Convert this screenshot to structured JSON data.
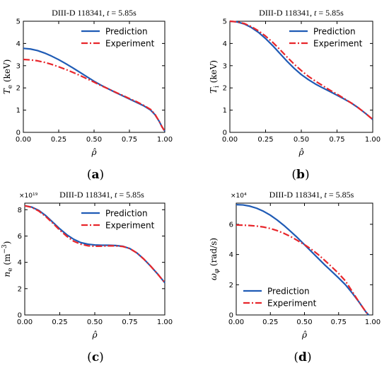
{
  "colors": {
    "prediction": "#1f5bb5",
    "experiment": "#e8262b"
  },
  "chart_data": [
    {
      "type": "line",
      "panel_label": "a",
      "title": "DIII-D 118341, t = 5.85s",
      "xlabel": "ρ̂",
      "ylabel": "Te (keV)",
      "xlim": [
        0,
        1
      ],
      "ylim": [
        0,
        5
      ],
      "xticks": [
        "0.00",
        "0.25",
        "0.50",
        "0.75",
        "1.00"
      ],
      "yticks": [
        "0",
        "1",
        "2",
        "3",
        "4",
        "5"
      ],
      "multiplier": "",
      "legend": "top-right",
      "series": [
        {
          "name": "Prediction",
          "style": "solid",
          "color": "#1f5bb5",
          "x": [
            0,
            0.05,
            0.1,
            0.15,
            0.2,
            0.25,
            0.3,
            0.35,
            0.4,
            0.45,
            0.5,
            0.55,
            0.6,
            0.65,
            0.7,
            0.75,
            0.8,
            0.85,
            0.9,
            0.93,
            0.96,
            0.98,
            1.0
          ],
          "y": [
            3.78,
            3.75,
            3.68,
            3.57,
            3.43,
            3.27,
            3.09,
            2.9,
            2.7,
            2.5,
            2.3,
            2.12,
            1.96,
            1.8,
            1.65,
            1.5,
            1.35,
            1.2,
            1.0,
            0.8,
            0.5,
            0.25,
            0.05
          ]
        },
        {
          "name": "Experiment",
          "style": "dashdot",
          "color": "#e8262b",
          "x": [
            0,
            0.05,
            0.1,
            0.15,
            0.2,
            0.25,
            0.3,
            0.35,
            0.4,
            0.45,
            0.5,
            0.55,
            0.6,
            0.65,
            0.7,
            0.75,
            0.8,
            0.85,
            0.9,
            0.93,
            0.96,
            0.98,
            1.0
          ],
          "y": [
            3.28,
            3.26,
            3.22,
            3.15,
            3.06,
            2.95,
            2.83,
            2.7,
            2.56,
            2.41,
            2.26,
            2.1,
            1.96,
            1.81,
            1.67,
            1.52,
            1.38,
            1.22,
            1.03,
            0.82,
            0.5,
            0.25,
            0.05
          ]
        }
      ]
    },
    {
      "type": "line",
      "panel_label": "b",
      "title": "DIII-D 118341, t = 5.85s",
      "xlabel": "ρ̂",
      "ylabel": "Ti (keV)",
      "xlim": [
        0,
        1
      ],
      "ylim": [
        0,
        5
      ],
      "xticks": [
        "0.00",
        "0.25",
        "0.50",
        "0.75",
        "1.00"
      ],
      "yticks": [
        "0",
        "1",
        "2",
        "3",
        "4",
        "5"
      ],
      "multiplier": "",
      "legend": "top-right",
      "series": [
        {
          "name": "Prediction",
          "style": "solid",
          "color": "#1f5bb5",
          "x": [
            0,
            0.05,
            0.1,
            0.15,
            0.2,
            0.25,
            0.3,
            0.35,
            0.4,
            0.45,
            0.5,
            0.55,
            0.6,
            0.65,
            0.7,
            0.75,
            0.8,
            0.85,
            0.9,
            0.95,
            1.0
          ],
          "y": [
            5.0,
            4.97,
            4.88,
            4.72,
            4.5,
            4.22,
            3.9,
            3.55,
            3.2,
            2.88,
            2.6,
            2.37,
            2.17,
            2.0,
            1.84,
            1.67,
            1.5,
            1.32,
            1.1,
            0.85,
            0.58
          ]
        },
        {
          "name": "Experiment",
          "style": "dashdot",
          "color": "#e8262b",
          "x": [
            0,
            0.05,
            0.1,
            0.15,
            0.2,
            0.25,
            0.3,
            0.35,
            0.4,
            0.45,
            0.5,
            0.55,
            0.6,
            0.65,
            0.7,
            0.75,
            0.8,
            0.85,
            0.9,
            0.95,
            1.0
          ],
          "y": [
            5.0,
            4.97,
            4.9,
            4.76,
            4.57,
            4.33,
            4.05,
            3.73,
            3.39,
            3.07,
            2.78,
            2.52,
            2.3,
            2.1,
            1.9,
            1.72,
            1.52,
            1.32,
            1.1,
            0.85,
            0.58
          ]
        }
      ]
    },
    {
      "type": "line",
      "panel_label": "c",
      "title": "DIII-D 118341, t = 5.85s",
      "xlabel": "ρ̂",
      "ylabel": "ne (m−3)",
      "xlim": [
        0,
        1
      ],
      "ylim": [
        0,
        8.5
      ],
      "xticks": [
        "0.00",
        "0.25",
        "0.50",
        "0.75",
        "1.00"
      ],
      "yticks": [
        "0",
        "2",
        "4",
        "6",
        "8"
      ],
      "multiplier": "×10¹⁹",
      "legend": "top-right",
      "series": [
        {
          "name": "Prediction",
          "style": "solid",
          "color": "#1f5bb5",
          "x": [
            0,
            0.05,
            0.1,
            0.15,
            0.2,
            0.25,
            0.3,
            0.35,
            0.4,
            0.45,
            0.5,
            0.55,
            0.6,
            0.65,
            0.7,
            0.75,
            0.8,
            0.85,
            0.9,
            0.95,
            1.0
          ],
          "y": [
            8.3,
            8.2,
            7.95,
            7.55,
            7.05,
            6.55,
            6.1,
            5.75,
            5.5,
            5.38,
            5.32,
            5.3,
            5.3,
            5.28,
            5.22,
            5.05,
            4.72,
            4.25,
            3.7,
            3.1,
            2.45
          ]
        },
        {
          "name": "Experiment",
          "style": "dashdot",
          "color": "#e8262b",
          "x": [
            0,
            0.05,
            0.1,
            0.15,
            0.2,
            0.25,
            0.3,
            0.35,
            0.4,
            0.45,
            0.5,
            0.55,
            0.6,
            0.65,
            0.7,
            0.75,
            0.8,
            0.85,
            0.9,
            0.95,
            1.0
          ],
          "y": [
            8.3,
            8.18,
            7.9,
            7.48,
            6.98,
            6.45,
            5.98,
            5.6,
            5.38,
            5.26,
            5.22,
            5.23,
            5.25,
            5.25,
            5.2,
            5.05,
            4.72,
            4.25,
            3.7,
            3.1,
            2.45
          ]
        }
      ]
    },
    {
      "type": "line",
      "panel_label": "d",
      "title": "DIII-D 118341, t = 5.85s",
      "xlabel": "ρ̂",
      "ylabel": "ωφ (rad/s)",
      "xlim": [
        0,
        1
      ],
      "ylim": [
        0,
        7.4
      ],
      "xticks": [
        "0.00",
        "0.25",
        "0.50",
        "0.75",
        "1.00"
      ],
      "yticks": [
        "0",
        "2",
        "4",
        "6"
      ],
      "multiplier": "×10⁴",
      "legend": "lower-left",
      "series": [
        {
          "name": "Prediction",
          "style": "solid",
          "color": "#1f5bb5",
          "x": [
            0,
            0.05,
            0.1,
            0.15,
            0.2,
            0.25,
            0.3,
            0.35,
            0.4,
            0.45,
            0.5,
            0.55,
            0.6,
            0.65,
            0.7,
            0.75,
            0.8,
            0.85,
            0.9,
            0.95,
            0.97
          ],
          "y": [
            7.3,
            7.28,
            7.2,
            7.06,
            6.86,
            6.6,
            6.28,
            5.92,
            5.52,
            5.1,
            4.65,
            4.2,
            3.75,
            3.3,
            2.88,
            2.45,
            2.0,
            1.45,
            0.85,
            0.2,
            0.0
          ]
        },
        {
          "name": "Experiment",
          "style": "dashdot",
          "color": "#e8262b",
          "x": [
            0,
            0.05,
            0.1,
            0.15,
            0.2,
            0.25,
            0.3,
            0.35,
            0.4,
            0.45,
            0.5,
            0.55,
            0.6,
            0.65,
            0.7,
            0.75,
            0.8,
            0.85,
            0.9,
            0.95,
            0.97
          ],
          "y": [
            5.95,
            5.94,
            5.92,
            5.88,
            5.82,
            5.72,
            5.58,
            5.4,
            5.18,
            4.92,
            4.65,
            4.35,
            4.0,
            3.6,
            3.18,
            2.75,
            2.25,
            1.55,
            0.85,
            0.2,
            0.0
          ]
        }
      ]
    }
  ]
}
